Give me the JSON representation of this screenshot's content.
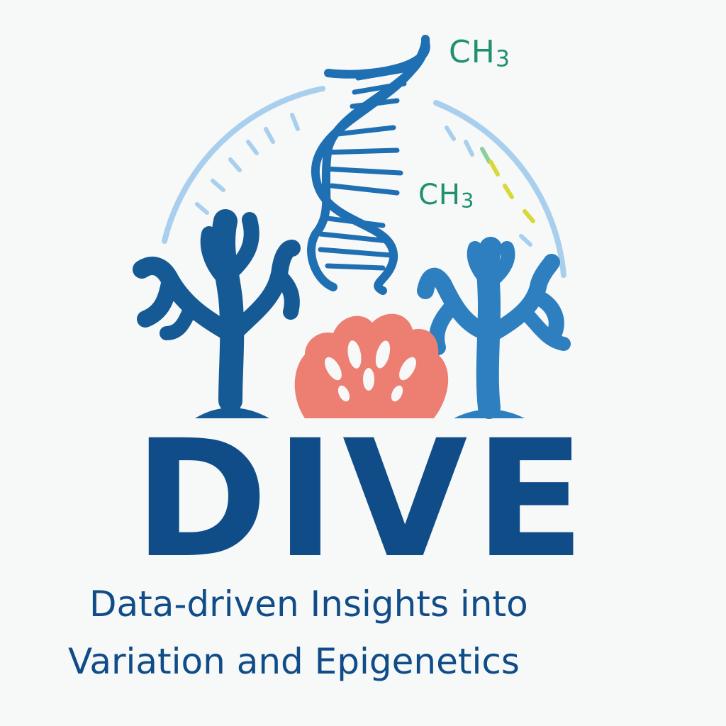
{
  "logo": {
    "title": "DIVE",
    "tagline_line1": "Data-driven Insights into",
    "tagline_line2": "Variation and Epigenetics",
    "methyl_top": {
      "base": "CH",
      "sub": "3"
    },
    "methyl_mid": {
      "base": "CH",
      "sub": "3"
    }
  },
  "colors": {
    "navy": "#0f4c88",
    "coral_left": "#155a94",
    "coral_right": "#2d7fc0",
    "dna": "#1f6fb3",
    "shell": "#ec7f72",
    "methyl_green": "#1f9070",
    "arc_light_blue": "#a9cfee",
    "accent_yellow": "#d8d83a"
  },
  "icons": [
    "dna-helix-icon",
    "branching-coral-icon",
    "scallop-shell-icon",
    "gauge-arc-icon"
  ]
}
